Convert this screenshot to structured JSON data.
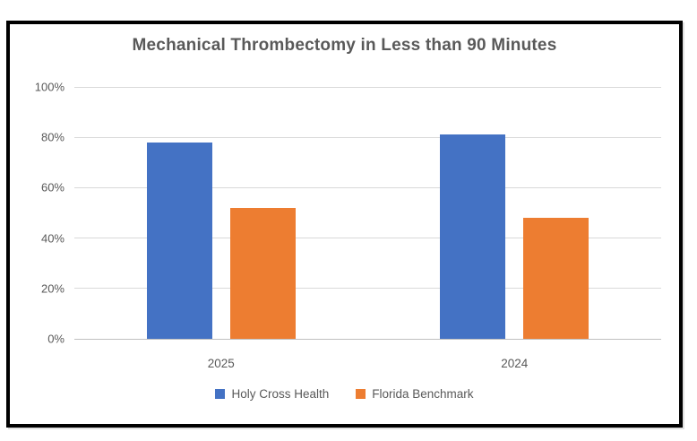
{
  "chart_data": {
    "type": "bar",
    "title": "Mechanical Thrombectomy in Less than 90 Minutes",
    "categories": [
      "2025",
      "2024"
    ],
    "series": [
      {
        "name": "Holy Cross Health",
        "color": "#4472C4",
        "values": [
          78,
          81
        ]
      },
      {
        "name": "Florida Benchmark",
        "color": "#ED7D31",
        "values": [
          52,
          48
        ]
      }
    ],
    "xlabel": "",
    "ylabel": "",
    "ylim": [
      0,
      100
    ],
    "yticks": [
      0,
      20,
      40,
      60,
      80,
      100
    ],
    "ytick_labels": [
      "0%",
      "20%",
      "40%",
      "60%",
      "80%",
      "100%"
    ],
    "grid": true,
    "legend_position": "bottom"
  },
  "theme": {
    "title_color": "#595959",
    "tick_color": "#595959",
    "gridline_color": "#D9D9D9",
    "axis_line_color": "#BFBFBF",
    "frame_border_color": "#000000",
    "background": "#FFFFFF"
  }
}
